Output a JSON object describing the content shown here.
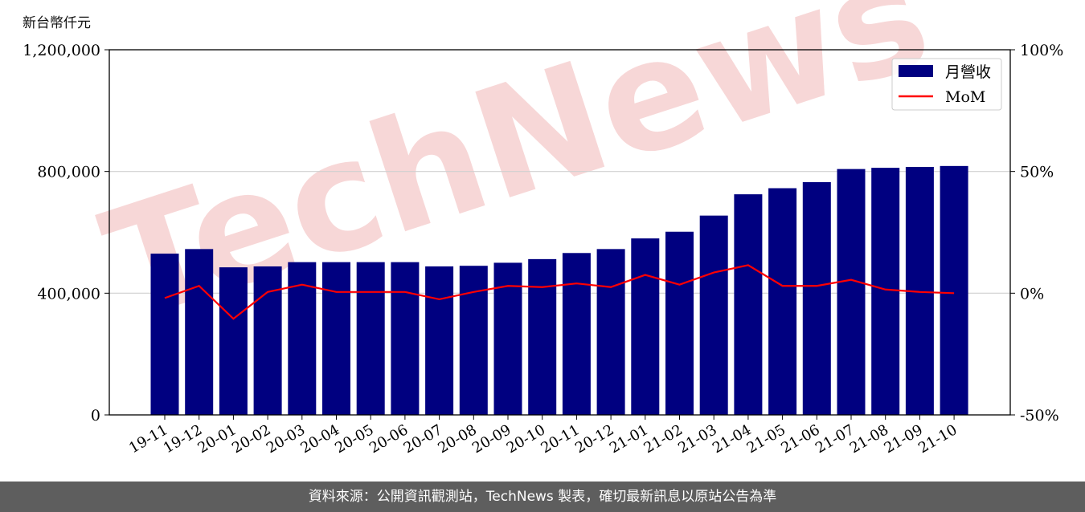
{
  "unit_label": "新台幣仟元",
  "footer_text": "資料來源：公開資訊觀測站，TechNews 製表，確切最新訊息以原站公告為準",
  "watermark_text": "TechNews",
  "colors": {
    "bar": "#000080",
    "line": "#ff0000",
    "grid": "#d0d0d0",
    "footer_bg": "#5e5e5e",
    "watermark": "#f4c9c9"
  },
  "chart_data": {
    "type": "bar",
    "categories": [
      "19-11",
      "19-12",
      "20-01",
      "20-02",
      "20-03",
      "20-04",
      "20-05",
      "20-06",
      "20-07",
      "20-08",
      "20-09",
      "20-10",
      "20-11",
      "20-12",
      "21-01",
      "21-02",
      "21-03",
      "21-04",
      "21-05",
      "21-06",
      "21-07",
      "21-08",
      "21-09",
      "21-10"
    ],
    "series": [
      {
        "name": "月營收",
        "type": "bar",
        "axis": "left",
        "values": [
          530000,
          545000,
          485000,
          488000,
          502000,
          502000,
          502000,
          502000,
          488000,
          490000,
          500000,
          512000,
          532000,
          545000,
          580000,
          602000,
          655000,
          725000,
          745000,
          765000,
          808000,
          812000,
          815000,
          818000
        ]
      },
      {
        "name": "MoM",
        "type": "line",
        "axis": "right",
        "values": [
          -2.0,
          3.0,
          -10.5,
          0.5,
          3.5,
          0.5,
          0.5,
          0.5,
          -2.5,
          0.5,
          3.0,
          2.5,
          4.0,
          2.5,
          7.5,
          3.5,
          8.5,
          11.5,
          3.0,
          3.0,
          5.5,
          1.5,
          0.5,
          0.0
        ]
      }
    ],
    "y_left": {
      "lim": [
        0,
        1200000
      ],
      "ticks": [
        0,
        400000,
        800000,
        1200000
      ],
      "tick_labels": [
        "0",
        "400,000",
        "800,000",
        "1,200,000"
      ]
    },
    "y_right": {
      "lim": [
        -50,
        100
      ],
      "ticks": [
        -50,
        0,
        50,
        100
      ],
      "tick_labels": [
        "-50%",
        "0%",
        "50%",
        "100%"
      ]
    },
    "grid": "horizontal",
    "legend": "top-right"
  }
}
